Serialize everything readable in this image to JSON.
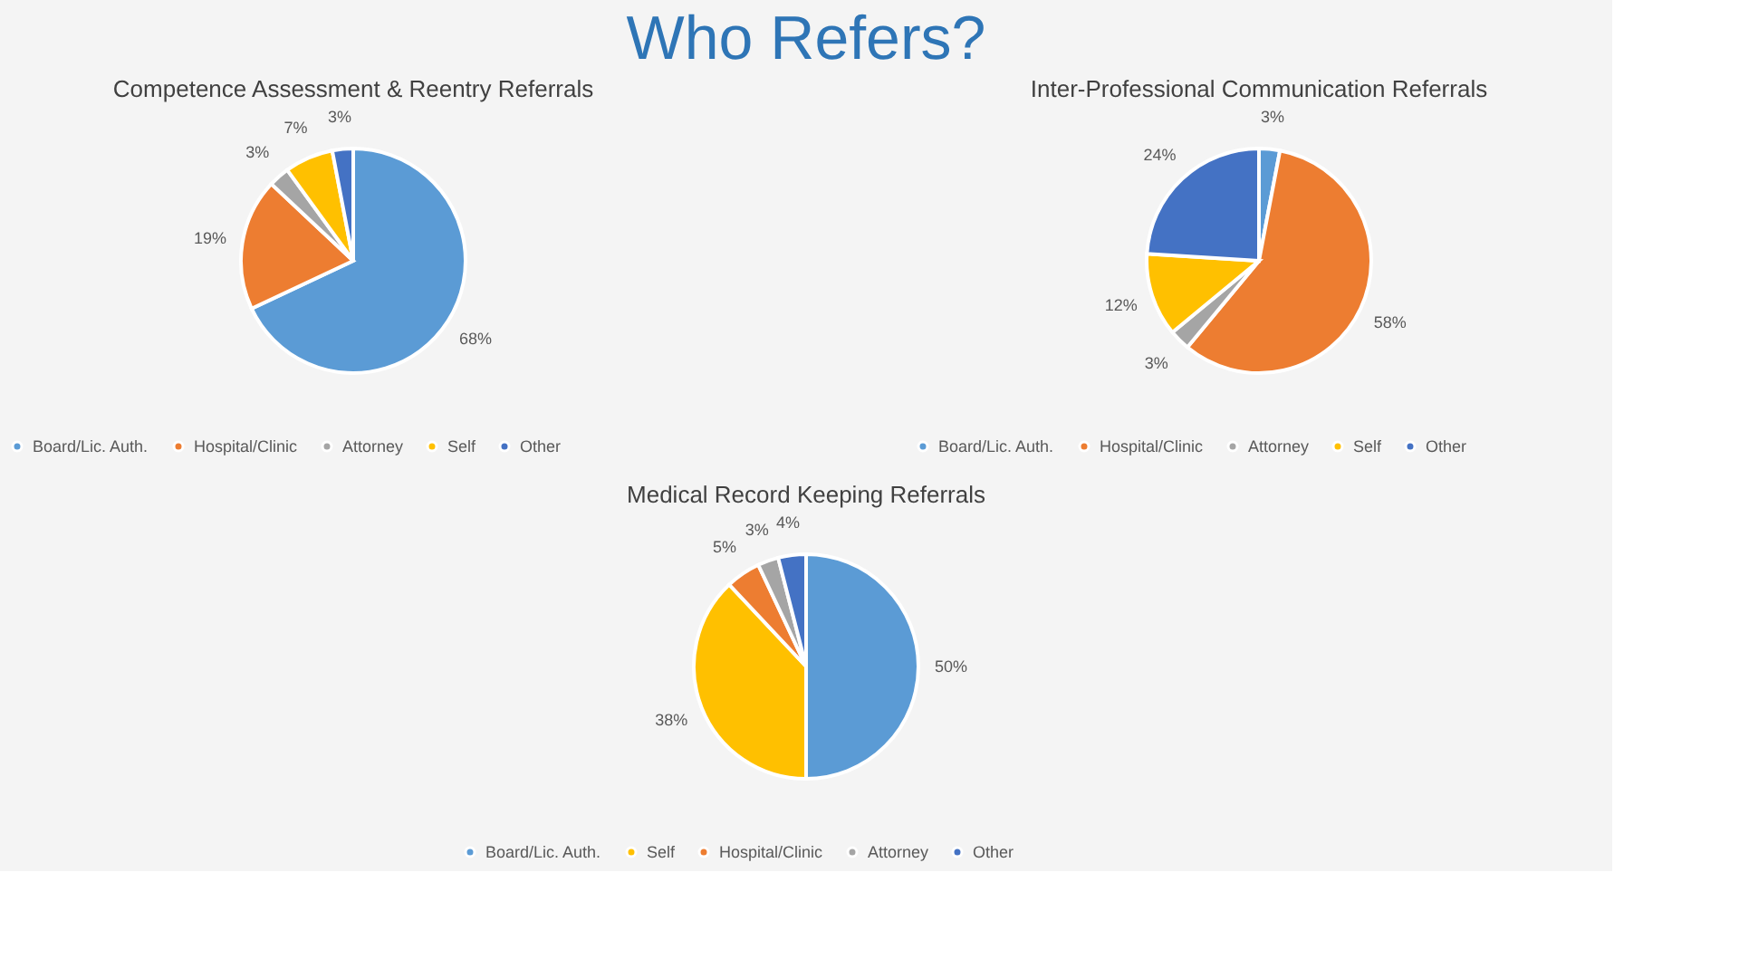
{
  "chart_data": [
    {
      "type": "pie",
      "title": "Competence Assessment & Reentry Referrals",
      "annotations": [
        "Who Refers?"
      ],
      "categories": [
        "Board/Lic. Auth.",
        "Hospital/Clinic",
        "Attorney",
        "Self",
        "Other"
      ],
      "values": [
        68,
        19,
        3,
        7,
        3
      ],
      "value_labels": [
        "68%",
        "19%",
        "3%",
        "7%",
        "3%"
      ],
      "colors": [
        "#5b9bd5",
        "#ed7d31",
        "#a5a5a5",
        "#ffc000",
        "#4472c4"
      ],
      "legend": "bottom"
    },
    {
      "type": "pie",
      "title": "Inter-Professional Communication Referrals",
      "categories": [
        "Board/Lic. Auth.",
        "Hospital/Clinic",
        "Attorney",
        "Self",
        "Other"
      ],
      "values": [
        3,
        58,
        3,
        12,
        24
      ],
      "value_labels": [
        "3%",
        "58%",
        "3%",
        "12%",
        "24%"
      ],
      "colors": [
        "#5b9bd5",
        "#ed7d31",
        "#a5a5a5",
        "#ffc000",
        "#4472c4"
      ],
      "legend": "bottom"
    },
    {
      "type": "pie",
      "title": "Medical Record Keeping Referrals",
      "categories": [
        "Board/Lic. Auth.",
        "Self",
        "Hospital/Clinic",
        "Attorney",
        "Other"
      ],
      "values": [
        50,
        38,
        5,
        3,
        4
      ],
      "value_labels": [
        "50%",
        "38%",
        "5%",
        "3%",
        "4%"
      ],
      "colors": [
        "#5b9bd5",
        "#ffc000",
        "#ed7d31",
        "#a5a5a5",
        "#4472c4"
      ],
      "legend": "bottom"
    }
  ]
}
